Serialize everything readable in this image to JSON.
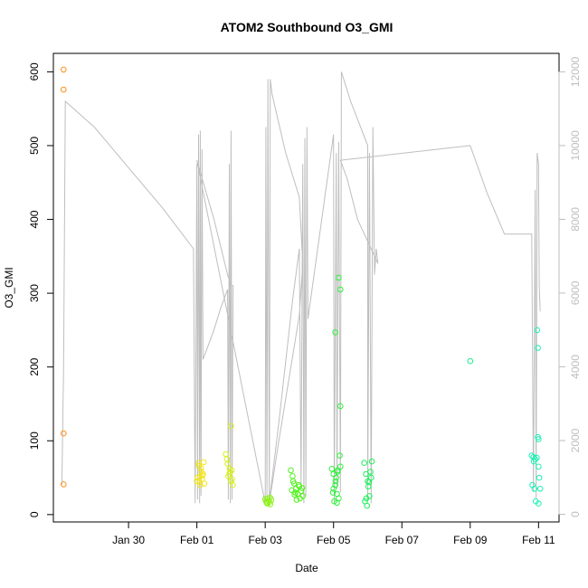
{
  "chart_data": {
    "type": "scatter",
    "title": "ATOM2 Southbound O3_GMI",
    "xlabel": "Date",
    "ylabel": "O3_GMI",
    "x_ticks": [
      {
        "label": "Jan 30",
        "day": 30
      },
      {
        "label": "Feb 01",
        "day": 32
      },
      {
        "label": "Feb 03",
        "day": 34
      },
      {
        "label": "Feb 05",
        "day": 36
      },
      {
        "label": "Feb 07",
        "day": 38
      },
      {
        "label": "Feb 09",
        "day": 40
      },
      {
        "label": "Feb 11",
        "day": 42
      }
    ],
    "y_ticks": [
      0,
      100,
      200,
      300,
      400,
      500,
      600
    ],
    "y2_ticks": [
      0,
      2000,
      4000,
      6000,
      8000,
      10000,
      12000
    ],
    "xlim": [
      27.8,
      42.6
    ],
    "ylim": [
      -10,
      625
    ],
    "y2lim": [
      -208,
      12500
    ],
    "grid": false,
    "series": [
      {
        "marker": "circle-open",
        "color": "#ff8c1a",
        "points": [
          [
            28.1,
            603
          ],
          [
            28.1,
            576
          ],
          [
            28.1,
            110
          ],
          [
            28.1,
            41
          ]
        ]
      },
      {
        "marker": "circle-open",
        "color": "#f2e51a",
        "points": [
          [
            32.0,
            45
          ],
          [
            32.05,
            70
          ],
          [
            32.1,
            52
          ],
          [
            32.12,
            63
          ],
          [
            32.15,
            48
          ],
          [
            32.18,
            55
          ],
          [
            32.02,
            50
          ],
          [
            32.08,
            44
          ],
          [
            32.13,
            58
          ],
          [
            32.2,
            71
          ],
          [
            32.22,
            42
          ],
          [
            32.06,
            66
          ],
          [
            32.1,
            40
          ],
          [
            32.16,
            53
          ]
        ]
      },
      {
        "marker": "circle-open",
        "color": "#d8f21a",
        "points": [
          [
            32.85,
            82
          ],
          [
            32.9,
            69
          ],
          [
            32.95,
            55
          ],
          [
            33.0,
            45
          ],
          [
            33.02,
            60
          ],
          [
            33.05,
            40
          ],
          [
            32.92,
            52
          ],
          [
            32.98,
            58
          ],
          [
            33.0,
            120
          ],
          [
            32.88,
            75
          ],
          [
            33.03,
            48
          ],
          [
            32.96,
            62
          ]
        ]
      },
      {
        "marker": "circle-open",
        "color": "#8ef21a",
        "points": [
          [
            34.0,
            21
          ],
          [
            34.05,
            16
          ],
          [
            34.1,
            19
          ],
          [
            34.15,
            14
          ],
          [
            34.08,
            22
          ],
          [
            34.12,
            17
          ],
          [
            34.02,
            18
          ],
          [
            34.18,
            20
          ],
          [
            34.06,
            15
          ],
          [
            34.14,
            23
          ]
        ]
      },
      {
        "marker": "circle-open",
        "color": "#4ef21a",
        "points": [
          [
            34.75,
            60
          ],
          [
            34.8,
            52
          ],
          [
            34.85,
            42
          ],
          [
            34.9,
            35
          ],
          [
            34.95,
            28
          ],
          [
            35.0,
            38
          ],
          [
            35.05,
            32
          ],
          [
            35.1,
            25
          ],
          [
            34.82,
            45
          ],
          [
            34.88,
            30
          ],
          [
            34.92,
            20
          ],
          [
            34.98,
            40
          ],
          [
            35.02,
            22
          ],
          [
            35.08,
            36
          ],
          [
            34.78,
            33
          ],
          [
            34.86,
            27
          ]
        ]
      },
      {
        "marker": "circle-open",
        "color": "#2ef23a",
        "points": [
          [
            35.95,
            62
          ],
          [
            36.0,
            55
          ],
          [
            36.05,
            40
          ],
          [
            36.1,
            28
          ],
          [
            36.02,
            18
          ],
          [
            36.08,
            50
          ],
          [
            36.12,
            60
          ],
          [
            36.18,
            80
          ],
          [
            36.2,
            65
          ],
          [
            35.98,
            30
          ],
          [
            36.06,
            45
          ],
          [
            36.15,
            22
          ],
          [
            36.1,
            16
          ],
          [
            36.05,
            247
          ],
          [
            36.15,
            321
          ],
          [
            36.2,
            305
          ],
          [
            36.2,
            147
          ],
          [
            36.0,
            35
          ],
          [
            36.12,
            58
          ]
        ]
      },
      {
        "marker": "circle-open",
        "color": "#1af25a",
        "points": [
          [
            36.9,
            70
          ],
          [
            36.95,
            55
          ],
          [
            37.0,
            45
          ],
          [
            37.05,
            25
          ],
          [
            37.1,
            50
          ],
          [
            36.92,
            18
          ],
          [
            36.98,
            12
          ],
          [
            37.02,
            38
          ],
          [
            37.08,
            58
          ],
          [
            37.12,
            72
          ],
          [
            36.96,
            22
          ],
          [
            37.04,
            44
          ]
        ]
      },
      {
        "marker": "circle-open",
        "color": "#1af28e",
        "points": [
          [
            40.0,
            208
          ]
        ]
      },
      {
        "marker": "circle-open",
        "color": "#1af2b4",
        "points": [
          [
            41.8,
            80
          ],
          [
            41.85,
            78
          ],
          [
            41.9,
            75
          ],
          [
            41.95,
            77
          ],
          [
            42.0,
            65
          ],
          [
            41.82,
            40
          ],
          [
            41.88,
            35
          ],
          [
            41.92,
            18
          ],
          [
            41.98,
            105
          ],
          [
            42.0,
            102
          ],
          [
            41.96,
            250
          ],
          [
            41.98,
            226
          ],
          [
            42.02,
            50
          ],
          [
            42.05,
            35
          ],
          [
            42.0,
            15
          ],
          [
            41.86,
            72
          ]
        ]
      }
    ],
    "altitude_series": {
      "color": "#bebebe",
      "axis": "right",
      "points": [
        [
          28.05,
          800
        ],
        [
          28.1,
          4000
        ],
        [
          28.15,
          11200
        ],
        [
          29.0,
          10500
        ],
        [
          30.0,
          9400
        ],
        [
          31.0,
          8300
        ],
        [
          31.9,
          7200
        ],
        [
          31.95,
          300
        ],
        [
          32.0,
          9500
        ],
        [
          32.02,
          400
        ],
        [
          32.05,
          10300
        ],
        [
          32.08,
          300
        ],
        [
          32.1,
          10400
        ],
        [
          32.12,
          500
        ],
        [
          32.15,
          9900
        ],
        [
          32.18,
          4200
        ],
        [
          32.3,
          4500
        ],
        [
          32.5,
          5000
        ],
        [
          32.7,
          5600
        ],
        [
          32.9,
          6100
        ],
        [
          32.92,
          400
        ],
        [
          32.95,
          9500
        ],
        [
          32.98,
          300
        ],
        [
          33.0,
          10400
        ],
        [
          33.03,
          400
        ],
        [
          33.06,
          6200
        ],
        [
          33.0,
          6200
        ],
        [
          32.9,
          6500
        ],
        [
          32.5,
          8000
        ],
        [
          32.0,
          9600
        ],
        [
          34.0,
          300
        ],
        [
          34.02,
          10500
        ],
        [
          34.05,
          500
        ],
        [
          34.08,
          11800
        ],
        [
          34.12,
          300
        ],
        [
          34.15,
          11800
        ],
        [
          34.2,
          11400
        ],
        [
          34.6,
          9800
        ],
        [
          35.0,
          8600
        ],
        [
          35.1,
          6800
        ],
        [
          35.0,
          5400
        ],
        [
          34.4,
          2000
        ],
        [
          34.1,
          200
        ],
        [
          34.4,
          2500
        ],
        [
          34.8,
          5800
        ],
        [
          35.0,
          7200
        ],
        [
          35.05,
          700
        ],
        [
          35.1,
          9500
        ],
        [
          35.13,
          300
        ],
        [
          35.16,
          10200
        ],
        [
          35.19,
          500
        ],
        [
          35.22,
          10500
        ],
        [
          35.25,
          5300
        ],
        [
          36.0,
          10300
        ],
        [
          36.02,
          300
        ],
        [
          36.08,
          9800
        ],
        [
          36.1,
          700
        ],
        [
          36.15,
          10100
        ],
        [
          36.2,
          600
        ],
        [
          36.23,
          12000
        ],
        [
          36.5,
          11200
        ],
        [
          37.0,
          10000
        ],
        [
          37.0,
          400
        ],
        [
          37.05,
          9800
        ],
        [
          37.1,
          300
        ],
        [
          37.15,
          10500
        ],
        [
          37.2,
          6500
        ],
        [
          37.25,
          7200
        ],
        [
          37.3,
          6800
        ],
        [
          36.7,
          8000
        ],
        [
          36.4,
          9100
        ],
        [
          36.2,
          9600
        ],
        [
          40.0,
          10000
        ],
        [
          40.5,
          8700
        ],
        [
          41.0,
          7600
        ],
        [
          41.8,
          7600
        ],
        [
          41.85,
          600
        ],
        [
          41.9,
          8800
        ],
        [
          41.93,
          400
        ],
        [
          41.96,
          9800
        ],
        [
          42.0,
          9500
        ],
        [
          42.02,
          6200
        ],
        [
          42.05,
          5500
        ]
      ]
    }
  }
}
